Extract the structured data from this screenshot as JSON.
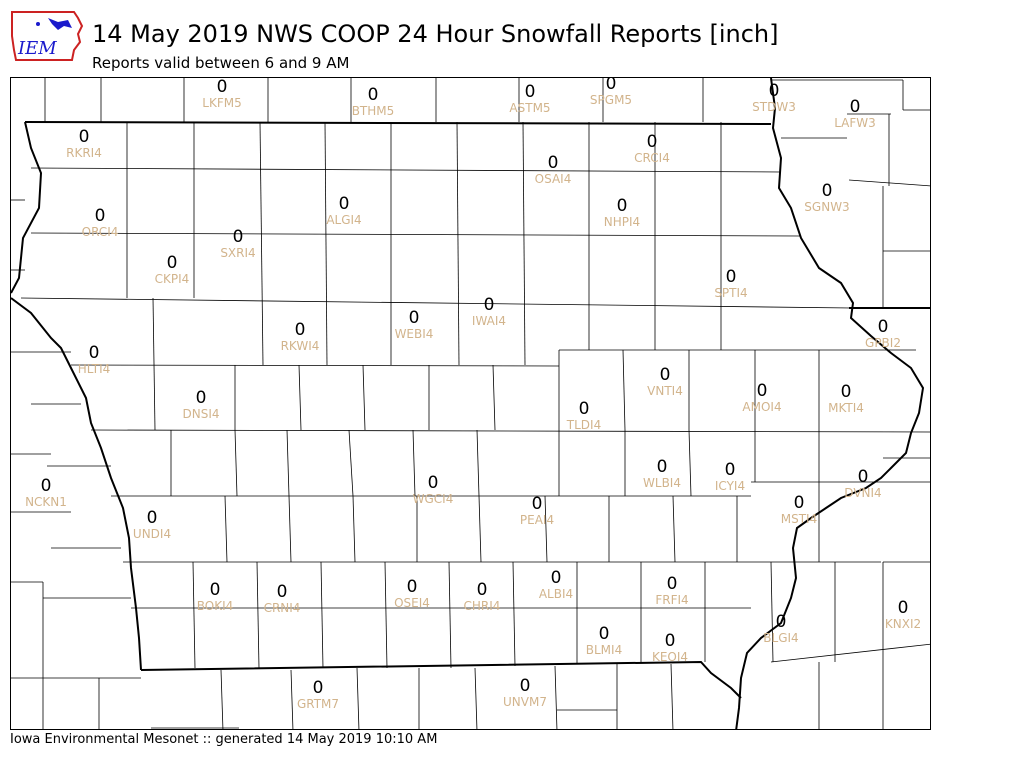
{
  "header": {
    "logo_text": "IEM",
    "title": "14 May 2019 NWS COOP 24 Hour Snowfall Reports [inch]",
    "subtitle": "Reports valid between 6 and 9 AM"
  },
  "footer": {
    "text": "Iowa Environmental Mesonet :: generated 14 May 2019 10:10 AM"
  },
  "colors": {
    "value": "#000000",
    "station_id": "#d2b48c",
    "border": "#000000",
    "logo_blue": "#1a1acc",
    "logo_red": "#cc2222"
  },
  "stations": [
    {
      "id": "LKFM5",
      "value": "0"
    },
    {
      "id": "BTHM5",
      "value": "0"
    },
    {
      "id": "ASTM5",
      "value": "0"
    },
    {
      "id": "SPGM5",
      "value": "0"
    },
    {
      "id": "STDW3",
      "value": "0"
    },
    {
      "id": "LAFW3",
      "value": "0"
    },
    {
      "id": "RKRI4",
      "value": "0"
    },
    {
      "id": "CRCI4",
      "value": "0"
    },
    {
      "id": "OSAI4",
      "value": "0"
    },
    {
      "id": "SGNW3",
      "value": "0"
    },
    {
      "id": "ORCI4",
      "value": "0"
    },
    {
      "id": "ALGI4",
      "value": "0"
    },
    {
      "id": "NHPI4",
      "value": "0"
    },
    {
      "id": "SXRI4",
      "value": "0"
    },
    {
      "id": "CKPI4",
      "value": "0"
    },
    {
      "id": "SPTI4",
      "value": "0"
    },
    {
      "id": "IWAI4",
      "value": "0"
    },
    {
      "id": "WEBI4",
      "value": "0"
    },
    {
      "id": "RKWI4",
      "value": "0"
    },
    {
      "id": "GPBI2",
      "value": "0"
    },
    {
      "id": "HLTI4",
      "value": "0"
    },
    {
      "id": "VNTI4",
      "value": "0"
    },
    {
      "id": "AMOI4",
      "value": "0"
    },
    {
      "id": "MKTI4",
      "value": "0"
    },
    {
      "id": "DNSI4",
      "value": "0"
    },
    {
      "id": "TLDI4",
      "value": "0"
    },
    {
      "id": "WLBI4",
      "value": "0"
    },
    {
      "id": "ICYI4",
      "value": "0"
    },
    {
      "id": "WGCI4",
      "value": "0"
    },
    {
      "id": "DVNI4",
      "value": "0"
    },
    {
      "id": "NCKN1",
      "value": "0"
    },
    {
      "id": "PEAI4",
      "value": "0"
    },
    {
      "id": "MSTI4",
      "value": "0"
    },
    {
      "id": "UNDI4",
      "value": "0"
    },
    {
      "id": "BOKI4",
      "value": "0"
    },
    {
      "id": "CRNI4",
      "value": "0"
    },
    {
      "id": "OSEI4",
      "value": "0"
    },
    {
      "id": "CHRI4",
      "value": "0"
    },
    {
      "id": "ALBI4",
      "value": "0"
    },
    {
      "id": "FRFI4",
      "value": "0"
    },
    {
      "id": "KNXI2",
      "value": "0"
    },
    {
      "id": "BLMI4",
      "value": "0"
    },
    {
      "id": "KEOI4",
      "value": "0"
    },
    {
      "id": "BLGI4",
      "value": "0"
    },
    {
      "id": "GRTM7",
      "value": "0"
    },
    {
      "id": "UNVM7",
      "value": "0"
    }
  ]
}
